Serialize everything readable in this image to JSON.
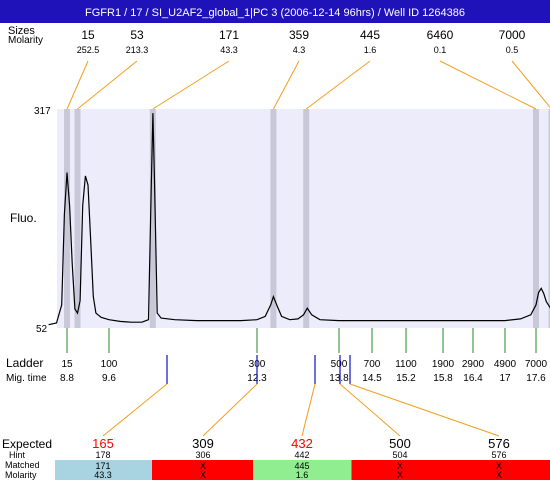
{
  "header": {
    "title": "FGFR1 / 17 / SI_U2AF2_global_1|PC 3 (2006-12-14 96hrs) / Well ID 1264386"
  },
  "labels": {
    "sizes": "Sizes",
    "molarity": "Molarity",
    "fluo": "Fluo.",
    "ladder": "Ladder",
    "mig_time": "Mig. time",
    "expected": "Expected",
    "hint": "Hint",
    "matched": "Matched",
    "molarity_row": "Molarity"
  },
  "colors": {
    "header_bg": "#1f12b8",
    "plot_bg": "#ececfb",
    "peak_band": "#c8c8d8",
    "callout_line": "#f0a020",
    "ladder_tick": "#2a8a2a",
    "blue_marker": "#1010c0",
    "match_ok": "#a8d4e2",
    "match_fail": "#ff0000",
    "match_green": "#90ee90",
    "expected_red": "#ff0000"
  },
  "chart_data": {
    "type": "line",
    "title": "FGFR1 / 17 / SI_U2AF2_global_1|PC 3 (2006-12-14 96hrs) / Well ID 1264386",
    "ylabel": "Fluo.",
    "ylim": [
      52,
      317
    ],
    "y_ticks": [
      "317",
      "52"
    ],
    "x_axis": "Mig. time",
    "xlim": [
      8.4,
      18.1
    ],
    "peaks": [
      {
        "size": "15",
        "molarity": "252.5",
        "time": 8.8
      },
      {
        "size": "53",
        "molarity": "213.3",
        "time": 9.0
      },
      {
        "size": "171",
        "molarity": "43.3",
        "time": 10.4
      },
      {
        "size": "359",
        "molarity": "4.3",
        "time": 12.6
      },
      {
        "size": "445",
        "molarity": "1.6",
        "time": 13.2
      },
      {
        "size": "6460",
        "molarity": "0.1",
        "time": 17.6
      },
      {
        "size": "7000",
        "molarity": "0.5",
        "time": 17.9
      }
    ],
    "ladder": [
      {
        "bp": "15",
        "time": "8.8"
      },
      {
        "bp": "100",
        "time": "9.6"
      },
      {
        "bp": "300",
        "time": "12.3"
      },
      {
        "bp": "500",
        "time": "13.8"
      },
      {
        "bp": "700",
        "time": "14.5"
      },
      {
        "bp": "1100",
        "time": "15.2"
      },
      {
        "bp": "1900",
        "time": "15.8"
      },
      {
        "bp": "2900",
        "time": "16.4"
      },
      {
        "bp": "4900",
        "time": "17"
      },
      {
        "bp": "7000",
        "time": "17.6"
      }
    ],
    "trace": [
      [
        8.45,
        56
      ],
      [
        8.6,
        58
      ],
      [
        8.7,
        80
      ],
      [
        8.75,
        190
      ],
      [
        8.8,
        240
      ],
      [
        8.85,
        200
      ],
      [
        8.9,
        130
      ],
      [
        8.95,
        75
      ],
      [
        9.0,
        70
      ],
      [
        9.05,
        85
      ],
      [
        9.1,
        200
      ],
      [
        9.15,
        236
      ],
      [
        9.2,
        225
      ],
      [
        9.25,
        160
      ],
      [
        9.3,
        90
      ],
      [
        9.35,
        70
      ],
      [
        9.45,
        65
      ],
      [
        9.6,
        62
      ],
      [
        9.8,
        60
      ],
      [
        10.0,
        59
      ],
      [
        10.2,
        59
      ],
      [
        10.32,
        62
      ],
      [
        10.37,
        220
      ],
      [
        10.4,
        312
      ],
      [
        10.43,
        230
      ],
      [
        10.48,
        70
      ],
      [
        10.55,
        64
      ],
      [
        10.8,
        62
      ],
      [
        11.2,
        61
      ],
      [
        11.6,
        61
      ],
      [
        12.0,
        61
      ],
      [
        12.3,
        62
      ],
      [
        12.45,
        66
      ],
      [
        12.55,
        80
      ],
      [
        12.6,
        90
      ],
      [
        12.66,
        80
      ],
      [
        12.75,
        66
      ],
      [
        12.9,
        62
      ],
      [
        13.05,
        63
      ],
      [
        13.15,
        68
      ],
      [
        13.22,
        76
      ],
      [
        13.3,
        68
      ],
      [
        13.45,
        62
      ],
      [
        13.8,
        61
      ],
      [
        14.5,
        61
      ],
      [
        15.2,
        61
      ],
      [
        15.8,
        61
      ],
      [
        16.4,
        61
      ],
      [
        17.0,
        61
      ],
      [
        17.3,
        63
      ],
      [
        17.5,
        68
      ],
      [
        17.6,
        80
      ],
      [
        17.65,
        95
      ],
      [
        17.7,
        100
      ],
      [
        17.75,
        94
      ],
      [
        17.8,
        84
      ],
      [
        17.9,
        74
      ],
      [
        18.0,
        64
      ],
      [
        18.1,
        60
      ]
    ],
    "expected": [
      {
        "value": "165",
        "hint": "178",
        "matched": "171",
        "molarity": "43.3",
        "highlight": true,
        "status": "ok"
      },
      {
        "value": "309",
        "hint": "306",
        "matched": "X",
        "molarity": "X",
        "highlight": false,
        "status": "fail"
      },
      {
        "value": "432",
        "hint": "442",
        "matched": "445",
        "molarity": "1.6",
        "highlight": true,
        "status": "green"
      },
      {
        "value": "500",
        "hint": "504",
        "matched": "X",
        "molarity": "X",
        "highlight": false,
        "status": "fail"
      },
      {
        "value": "576",
        "hint": "576",
        "matched": "X",
        "molarity": "X",
        "highlight": false,
        "status": "fail"
      }
    ]
  }
}
